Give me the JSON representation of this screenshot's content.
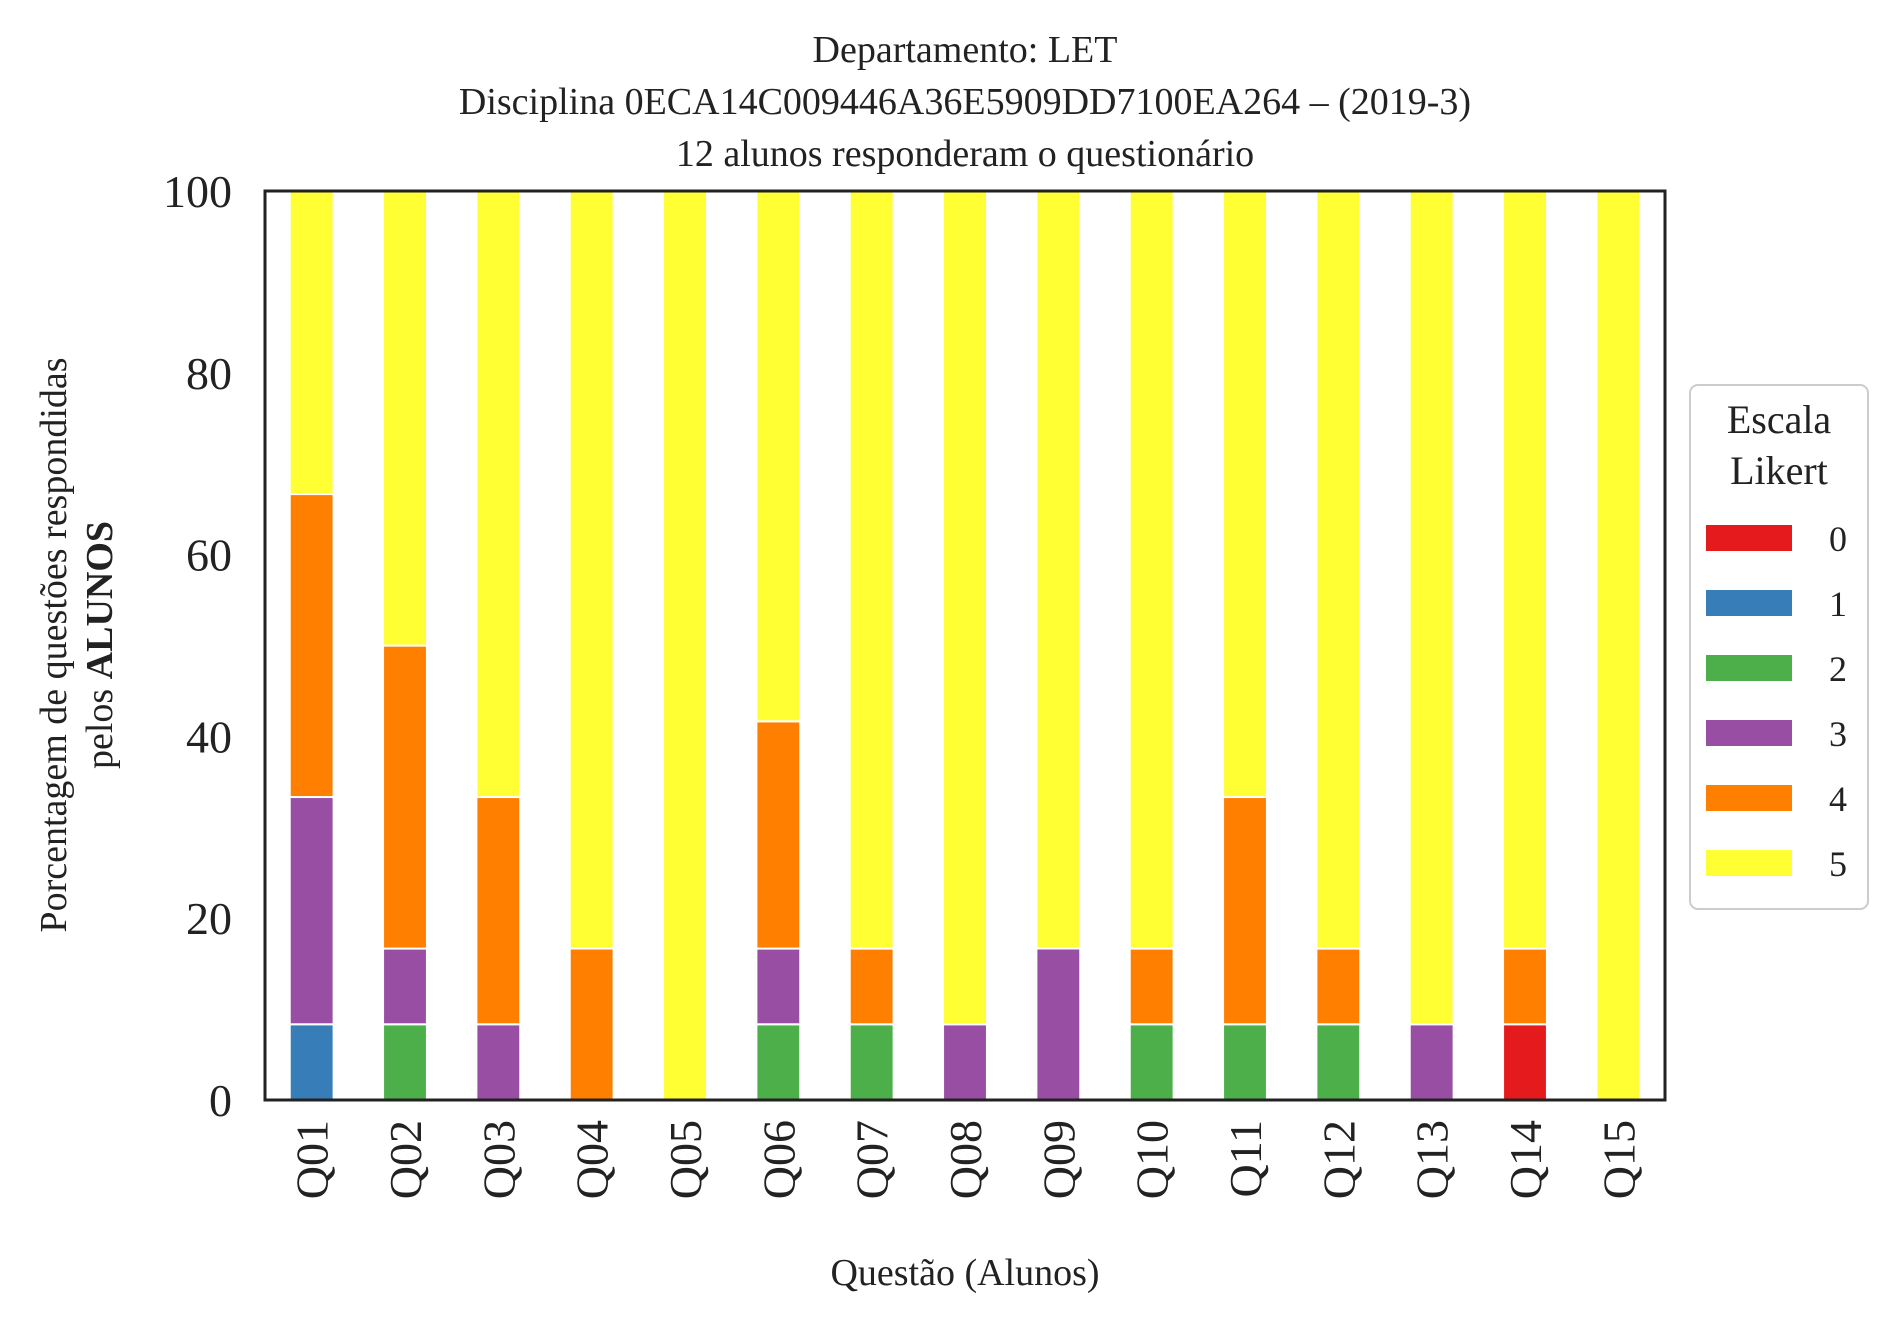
{
  "chart_data": {
    "type": "bar",
    "stacked": true,
    "title_lines": [
      "Departamento: LET",
      "Disciplina 0ECA14C009446A36E5909DD7100EA264 – (2019-3)",
      "12 alunos responderam o questionário"
    ],
    "xlabel": "Questão (Alunos)",
    "ylabel_line1": "Porcentagem de questões respondidas",
    "ylabel_line2_prefix": "pelos ",
    "ylabel_line2_bold": "ALUNOS",
    "ylim": [
      0,
      100
    ],
    "yticks": [
      "0",
      "20",
      "40",
      "60",
      "80",
      "100"
    ],
    "categories": [
      "Q01",
      "Q02",
      "Q03",
      "Q04",
      "Q05",
      "Q06",
      "Q07",
      "Q08",
      "Q09",
      "Q10",
      "Q11",
      "Q12",
      "Q13",
      "Q14",
      "Q15"
    ],
    "legend": {
      "title_lines": [
        "Escala",
        "Likert"
      ],
      "placement": "right, outside plot, vertically centered"
    },
    "grid": false,
    "series": [
      {
        "name": "0",
        "color": "#e41a1c",
        "values": [
          0,
          0,
          0,
          0,
          0,
          0,
          0,
          0,
          0,
          0,
          0,
          0,
          0,
          8.33,
          0
        ]
      },
      {
        "name": "1",
        "color": "#377eb8",
        "values": [
          8.33,
          0,
          0,
          0,
          0,
          0,
          0,
          0,
          0,
          0,
          0,
          0,
          0,
          0,
          0
        ]
      },
      {
        "name": "2",
        "color": "#4daf4a",
        "values": [
          0,
          8.33,
          0,
          0,
          0,
          8.33,
          8.33,
          0,
          0,
          8.33,
          8.33,
          8.33,
          0,
          0,
          0
        ]
      },
      {
        "name": "3",
        "color": "#984ea3",
        "values": [
          25,
          8.33,
          8.33,
          0,
          0,
          8.33,
          0,
          8.33,
          16.67,
          0,
          0,
          0,
          8.33,
          0,
          0
        ]
      },
      {
        "name": "4",
        "color": "#ff7f00",
        "values": [
          33.33,
          33.33,
          25,
          16.67,
          0,
          25,
          8.33,
          0,
          0,
          8.33,
          25,
          8.33,
          0,
          8.33,
          0
        ]
      },
      {
        "name": "5",
        "color": "#ffff33",
        "values": [
          33.33,
          50,
          66.67,
          83.33,
          100,
          58.33,
          83.33,
          91.67,
          83.33,
          83.33,
          66.67,
          83.33,
          91.67,
          83.33,
          100
        ]
      }
    ]
  }
}
